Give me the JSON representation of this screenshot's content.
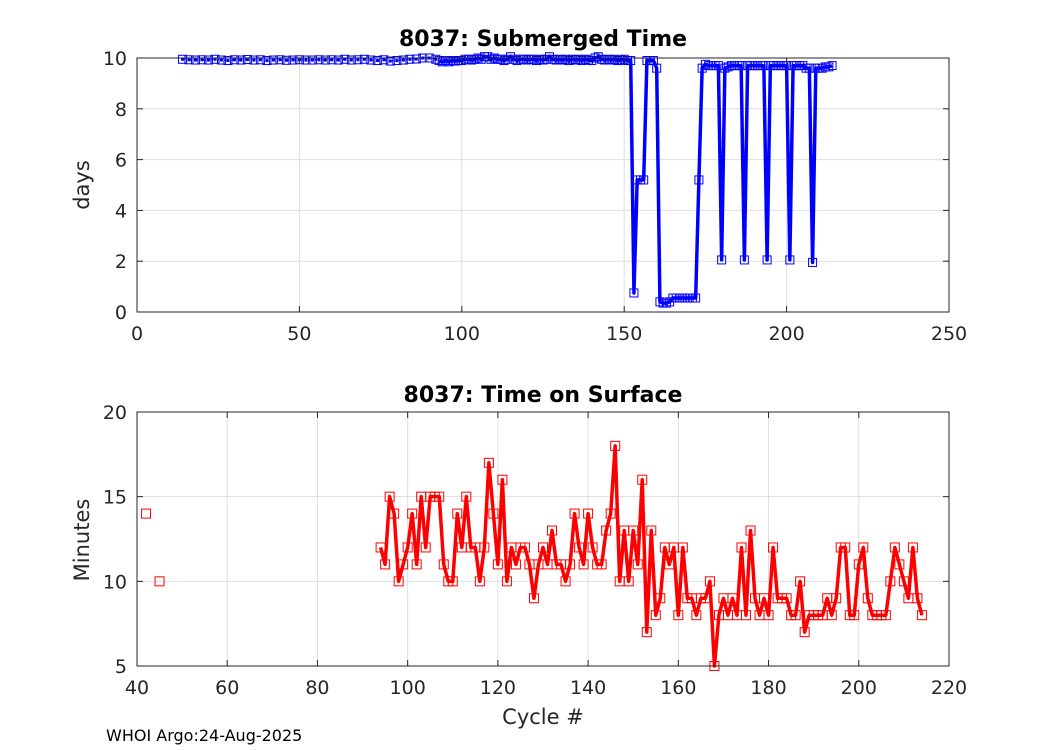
{
  "footer_text": "WHOI Argo:24-Aug-2025",
  "chart_data": [
    {
      "type": "line",
      "title": "8037: Submerged Time",
      "xlabel": "",
      "ylabel": "days",
      "xlim": [
        0,
        250
      ],
      "ylim": [
        0,
        10
      ],
      "xticks": [
        0,
        50,
        100,
        150,
        200,
        250
      ],
      "yticks": [
        0,
        2,
        4,
        6,
        8,
        10
      ],
      "grid": true,
      "colors": {
        "series": "#0000ff"
      },
      "segments": [
        {
          "marker": "square-dotted",
          "x": [
            14,
            16,
            18,
            20,
            22,
            24,
            26,
            28,
            30,
            32,
            34,
            36,
            38,
            40,
            42,
            44,
            46,
            48,
            50,
            52,
            54,
            56,
            58,
            60,
            62,
            64,
            66,
            68,
            70,
            72,
            74,
            76,
            78,
            80,
            82,
            84,
            86,
            88,
            90,
            92
          ],
          "y": [
            9.95,
            9.93,
            9.92,
            9.93,
            9.92,
            9.95,
            9.92,
            9.9,
            9.93,
            9.92,
            9.94,
            9.92,
            9.93,
            9.9,
            9.92,
            9.93,
            9.91,
            9.92,
            9.93,
            9.92,
            9.92,
            9.93,
            9.92,
            9.93,
            9.92,
            9.95,
            9.92,
            9.93,
            9.95,
            9.92,
            9.9,
            9.93,
            9.88,
            9.9,
            9.92,
            9.95,
            9.96,
            10.0,
            10.0,
            9.95
          ]
        },
        {
          "marker": "square",
          "x": [
            93,
            94,
            95,
            96,
            97,
            98,
            99,
            100,
            101,
            102,
            103,
            104,
            105,
            106,
            107,
            108,
            109,
            110,
            111,
            112,
            113,
            114,
            115,
            116,
            117,
            118,
            119,
            120,
            121,
            122,
            123,
            124,
            125,
            126,
            127,
            128,
            129,
            130,
            131,
            132,
            133,
            134,
            135,
            136,
            137,
            138,
            139,
            140,
            141,
            142,
            143,
            144,
            145,
            146,
            147,
            148,
            149,
            150,
            151,
            152,
            153,
            154,
            155,
            156,
            157,
            158,
            159,
            160,
            161,
            162,
            163,
            164,
            165,
            166,
            167,
            168,
            169,
            170,
            171,
            172,
            173,
            174,
            175,
            176,
            177,
            178,
            179,
            180,
            181,
            182,
            183,
            184,
            185,
            186,
            187,
            188,
            189,
            190,
            191,
            192,
            193,
            194,
            195,
            196,
            197,
            198,
            199,
            200,
            201,
            202,
            203,
            204,
            205,
            206,
            207,
            208,
            209,
            210,
            211,
            212,
            213,
            214
          ],
          "y": [
            9.9,
            9.85,
            9.9,
            9.85,
            9.9,
            9.88,
            9.9,
            9.9,
            9.95,
            9.95,
            9.92,
            9.95,
            10.0,
            9.95,
            10.05,
            10.05,
            9.95,
            10.0,
            9.95,
            9.95,
            9.9,
            9.95,
            10.05,
            9.95,
            9.9,
            9.95,
            9.95,
            9.92,
            9.95,
            9.95,
            9.9,
            9.95,
            9.92,
            9.95,
            10.05,
            9.95,
            9.92,
            9.95,
            9.92,
            9.95,
            9.9,
            9.95,
            9.92,
            9.95,
            9.9,
            9.95,
            9.92,
            9.9,
            10.0,
            10.05,
            9.95,
            9.92,
            9.95,
            9.92,
            9.95,
            9.9,
            9.92,
            9.95,
            9.9,
            9.9,
            0.75,
            5.2,
            5.2,
            5.2,
            9.9,
            9.9,
            9.9,
            9.6,
            0.4,
            0.35,
            0.35,
            0.4,
            0.55,
            0.55,
            0.55,
            0.55,
            0.55,
            0.55,
            0.55,
            0.55,
            5.2,
            9.6,
            9.75,
            9.7,
            9.7,
            9.7,
            9.7,
            2.05,
            9.6,
            9.65,
            9.7,
            9.7,
            9.7,
            9.7,
            2.05,
            9.7,
            9.7,
            9.7,
            9.7,
            9.7,
            9.7,
            2.05,
            9.7,
            9.7,
            9.7,
            9.7,
            9.7,
            9.7,
            2.05,
            9.7,
            9.7,
            9.7,
            9.7,
            9.6,
            9.6,
            1.95,
            9.6,
            9.6,
            9.6,
            9.65,
            9.65,
            9.7
          ]
        }
      ]
    },
    {
      "type": "line",
      "title": "8037: Time on Surface",
      "xlabel": "Cycle #",
      "ylabel": "Minutes",
      "xlim": [
        40,
        220
      ],
      "ylim": [
        5,
        20
      ],
      "xticks": [
        40,
        60,
        80,
        100,
        120,
        140,
        160,
        180,
        200,
        220
      ],
      "yticks": [
        5,
        10,
        15,
        20
      ],
      "grid": true,
      "colors": {
        "series": "#ff0000"
      },
      "isolated_points": {
        "x": [
          42,
          45
        ],
        "y": [
          14,
          10
        ]
      },
      "series": {
        "x": [
          94,
          95,
          96,
          97,
          98,
          99,
          100,
          101,
          102,
          103,
          104,
          105,
          106,
          107,
          108,
          109,
          110,
          111,
          112,
          113,
          114,
          115,
          116,
          117,
          118,
          119,
          120,
          121,
          122,
          123,
          124,
          125,
          126,
          127,
          128,
          129,
          130,
          131,
          132,
          133,
          134,
          135,
          136,
          137,
          138,
          139,
          140,
          141,
          142,
          143,
          144,
          145,
          146,
          147,
          148,
          149,
          150,
          151,
          152,
          153,
          154,
          155,
          156,
          157,
          158,
          159,
          160,
          161,
          162,
          163,
          164,
          165,
          166,
          167,
          168,
          169,
          170,
          171,
          172,
          173,
          174,
          175,
          176,
          177,
          178,
          179,
          180,
          181,
          182,
          183,
          184,
          185,
          186,
          187,
          188,
          189,
          190,
          191,
          192,
          193,
          194,
          195,
          196,
          197,
          198,
          199,
          200,
          201,
          202,
          203,
          204,
          205,
          206,
          207,
          208,
          209,
          210,
          211,
          212,
          213,
          214
        ],
        "y": [
          12,
          11,
          15,
          14,
          10,
          11,
          12,
          14,
          11,
          15,
          12,
          15,
          15,
          15,
          11,
          10,
          10,
          14,
          12,
          15,
          12,
          12,
          10,
          12,
          17,
          14,
          11,
          16,
          10,
          12,
          11,
          12,
          12,
          11,
          9,
          11,
          12,
          11,
          13,
          11,
          11,
          10,
          11,
          14,
          12,
          11,
          14,
          12,
          11,
          11,
          13,
          14,
          18,
          10,
          13,
          10,
          13,
          11,
          16,
          7,
          13,
          8,
          9,
          12,
          11,
          12,
          8,
          12,
          9,
          9,
          8,
          9,
          9,
          10,
          5,
          8,
          9,
          8,
          9,
          8,
          12,
          8,
          13,
          9,
          8,
          9,
          8,
          12,
          9,
          9,
          9,
          8,
          8,
          10,
          7,
          8,
          8,
          8,
          8,
          9,
          8,
          9,
          12,
          12,
          8,
          8,
          11,
          12,
          9,
          8,
          8,
          8,
          8,
          10,
          12,
          11,
          10,
          9,
          12,
          9,
          8
        ]
      }
    }
  ]
}
